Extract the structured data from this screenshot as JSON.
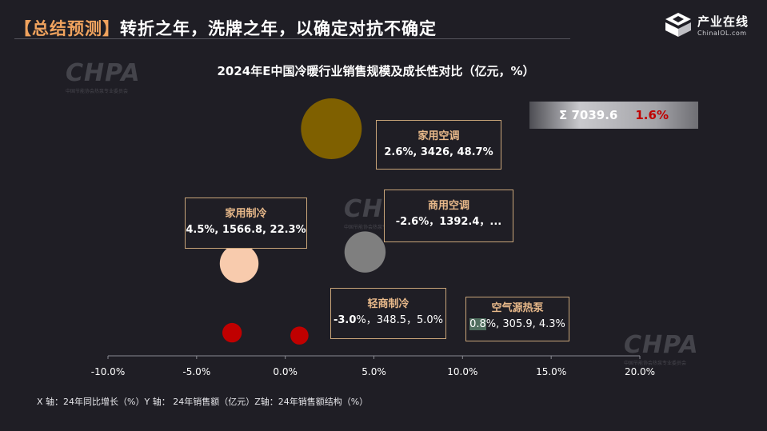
{
  "header": {
    "tag": "【总结预测】",
    "title": "转折之年，洗牌之年，以确定对抗不确定"
  },
  "logo": {
    "cn": "产业在线",
    "en": "ChinaIOL.com"
  },
  "watermark": {
    "brand": "CHPA",
    "org": "中国节能协会热泵专业委员会"
  },
  "total": {
    "label": "Σ 7039.6",
    "growth": "1.6%"
  },
  "footnote": "X 轴：24年同比增长（%）Y 轴： 24年销售额（亿元）Z轴：24年销售额结构（%）",
  "colors": {
    "background": "#1f1e25",
    "accent": "#f0a35e",
    "box_border": "#c9a579",
    "red": "#c00000"
  },
  "chart_data": {
    "type": "bubble",
    "title": "2024年E中国冷暖行业销售规模及成长性对比（亿元，%）",
    "xlabel": "",
    "ylabel": "",
    "x_ticks": [
      "-10.0%",
      "-5.0%",
      "0.0%",
      "5.0%",
      "10.0%",
      "15.0%",
      "20.0%"
    ],
    "xlim": [
      -10,
      20
    ],
    "grid": false,
    "points": [
      {
        "name": "家用空调",
        "label": "2.6%, 3426, 48.7%",
        "x": 2.6,
        "y": 3426,
        "z": 48.7,
        "color": "#7f6000"
      },
      {
        "name": "家用制冷",
        "label": "4.5%, 1566.8, 22.3%",
        "x": 4.5,
        "y": 1566.8,
        "z": 22.3,
        "color": "#7f7f7f"
      },
      {
        "name": "商用空调",
        "label": "-2.6%，1392.4，...",
        "x": -2.6,
        "y": 1392.4,
        "z": 19.8,
        "color": "#f8cbad"
      },
      {
        "name": "轻商制冷",
        "label_bold": "-3.0",
        "label_rest": "%，348.5，5.0%",
        "x": -3.0,
        "y": 348.5,
        "z": 5.0,
        "color": "#c00000"
      },
      {
        "name": "空气源热泵",
        "label_hl": "0.8",
        "label_rest": "%, 305.9, 4.3%",
        "x": 0.8,
        "y": 305.9,
        "z": 4.3,
        "color": "#c00000"
      }
    ]
  }
}
